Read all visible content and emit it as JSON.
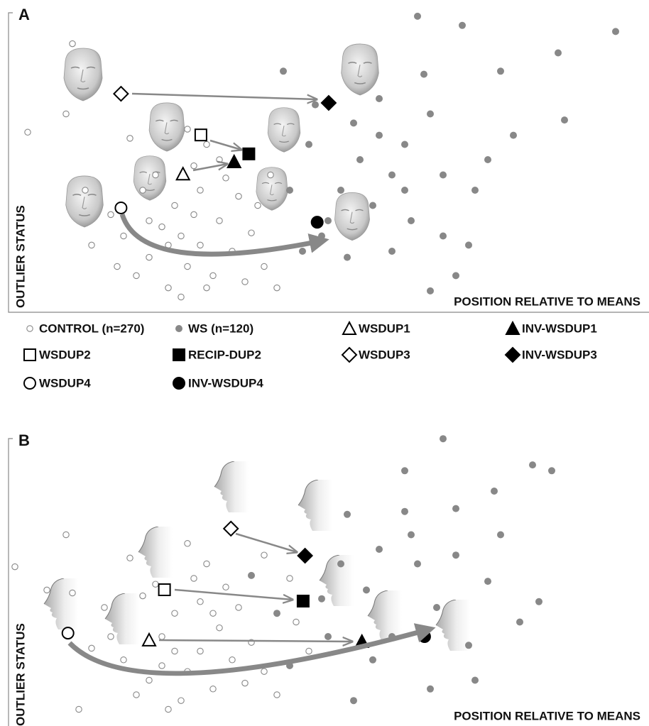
{
  "chart_data": [
    {
      "type": "scatter",
      "title": "A",
      "xlabel": "POSITION RELATIVE TO MEANS",
      "ylabel": "OUTLIER STATUS",
      "xlim": [
        0,
        100
      ],
      "ylim": [
        0,
        100
      ],
      "series": [
        {
          "name": "CONTROL (n=270)",
          "marker": "circle-small-open",
          "color": "#888888",
          "x": [
            20,
            22,
            25,
            28,
            30,
            24,
            26,
            30,
            33,
            35,
            32,
            27,
            18,
            16,
            21,
            29,
            31,
            23,
            36,
            38,
            40,
            42,
            34,
            28,
            19,
            13,
            12,
            10,
            9,
            37,
            25,
            29,
            31,
            22,
            27,
            33,
            17,
            39,
            41,
            3
          ],
          "values": [
            12,
            18,
            8,
            15,
            22,
            28,
            35,
            40,
            30,
            20,
            12,
            5,
            25,
            32,
            40,
            48,
            55,
            45,
            38,
            26,
            15,
            8,
            44,
            60,
            57,
            22,
            40,
            88,
            65,
            10,
            22,
            32,
            8,
            30,
            25,
            50,
            15,
            35,
            45,
            59
          ]
        },
        {
          "name": "WS (n=120)",
          "marker": "circle-small-filled",
          "color": "#888888",
          "x": [
            64,
            71,
            95,
            86,
            77,
            87,
            65,
            43,
            48,
            54,
            58,
            62,
            66,
            60,
            55,
            52,
            57,
            63,
            68,
            72,
            75,
            68,
            47,
            44,
            49,
            53,
            60,
            70,
            66,
            79,
            73,
            58,
            50,
            46,
            62
          ],
          "values": [
            97,
            94,
            92,
            85,
            79,
            63,
            78,
            79,
            68,
            62,
            58,
            55,
            65,
            45,
            50,
            40,
            35,
            30,
            25,
            22,
            50,
            45,
            55,
            40,
            25,
            18,
            20,
            12,
            7,
            58,
            40,
            70,
            30,
            20,
            40
          ]
        },
        {
          "name": "WSDUP1",
          "marker": "triangle-open",
          "color": "#000000",
          "x": [
            27.3
          ],
          "values": [
            45.3
          ]
        },
        {
          "name": "INV-WSDUP1",
          "marker": "triangle-filled",
          "color": "#000000",
          "x": [
            35.3
          ],
          "values": [
            49.3
          ]
        },
        {
          "name": "WSDUP2",
          "marker": "square-open",
          "color": "#000000",
          "x": [
            30.1
          ],
          "values": [
            58.1
          ]
        },
        {
          "name": "RECIP-DUP2",
          "marker": "square-filled",
          "color": "#000000",
          "x": [
            37.6
          ],
          "values": [
            51.9
          ]
        },
        {
          "name": "WSDUP3",
          "marker": "diamond-open",
          "color": "#000000",
          "x": [
            17.6
          ],
          "values": [
            71.6
          ]
        },
        {
          "name": "INV-WSDUP3",
          "marker": "diamond-filled",
          "color": "#000000",
          "x": [
            50.1
          ],
          "values": [
            68.6
          ]
        },
        {
          "name": "WSDUP4",
          "marker": "circle-open",
          "color": "#000000",
          "x": [
            17.6
          ],
          "values": [
            34.2
          ]
        },
        {
          "name": "INV-WSDUP4",
          "marker": "circle-filled",
          "color": "#000000",
          "x": [
            48.3
          ],
          "values": [
            29.5
          ]
        }
      ]
    },
    {
      "type": "scatter",
      "title": "B",
      "xlabel": "POSITION RELATIVE TO MEANS",
      "ylabel": "OUTLIER STATUS",
      "xlim": [
        0,
        100
      ],
      "ylim": [
        0,
        100
      ],
      "series": [
        {
          "marker": "circle-small-open",
          "color": "#888888",
          "x": [
            20,
            22,
            25,
            28,
            30,
            24,
            26,
            30,
            33,
            35,
            32,
            27,
            18,
            16,
            21,
            29,
            31,
            23,
            36,
            38,
            40,
            42,
            34,
            28,
            19,
            13,
            10,
            9,
            1,
            11,
            37,
            45,
            47,
            44,
            40,
            15,
            6,
            26,
            32,
            24
          ],
          "values": [
            10,
            15,
            5,
            18,
            25,
            30,
            38,
            42,
            33,
            22,
            12,
            8,
            22,
            30,
            44,
            50,
            55,
            48,
            40,
            28,
            18,
            10,
            47,
            62,
            57,
            26,
            45,
            65,
            54,
            5,
            14,
            35,
            25,
            50,
            58,
            40,
            46,
            25,
            38,
            20
          ]
        },
        {
          "marker": "circle-small-filled",
          "color": "#888888",
          "x": [
            68,
            62,
            82,
            85,
            76,
            70,
            62,
            53,
            58,
            64,
            75,
            77,
            70,
            56,
            49,
            42,
            44,
            54,
            60,
            66,
            72,
            80,
            83,
            67,
            52,
            38,
            50,
            57,
            63,
            73
          ],
          "values": [
            98,
            87,
            89,
            87,
            80,
            74,
            73,
            72,
            60,
            55,
            49,
            65,
            58,
            46,
            43,
            38,
            20,
            8,
            30,
            12,
            27,
            35,
            42,
            40,
            55,
            51,
            30,
            22,
            65,
            15
          ]
        },
        {
          "marker": "triangle-open",
          "color": "#000000",
          "x": [
            22.0
          ],
          "values": [
            28.8
          ]
        },
        {
          "marker": "triangle-filled",
          "color": "#000000",
          "x": [
            55.3
          ],
          "values": [
            28.3
          ]
        },
        {
          "marker": "square-open",
          "color": "#000000",
          "x": [
            24.4
          ],
          "values": [
            46.1
          ]
        },
        {
          "marker": "square-filled",
          "color": "#000000",
          "x": [
            46.1
          ],
          "values": [
            42.2
          ]
        },
        {
          "marker": "diamond-open",
          "color": "#000000",
          "x": [
            34.8
          ],
          "values": [
            67.1
          ]
        },
        {
          "marker": "diamond-filled",
          "color": "#000000",
          "x": [
            46.4
          ],
          "values": [
            57.8
          ]
        },
        {
          "marker": "circle-open",
          "color": "#000000",
          "x": [
            9.3
          ],
          "values": [
            31.2
          ]
        },
        {
          "marker": "circle-filled",
          "color": "#000000",
          "x": [
            65.1
          ],
          "values": [
            30.0
          ]
        }
      ]
    }
  ]
}
